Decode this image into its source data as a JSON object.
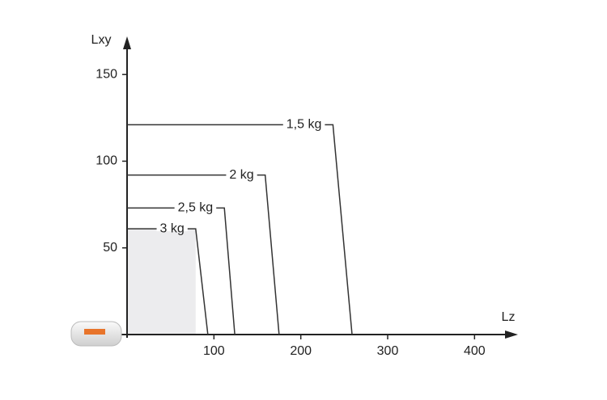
{
  "chart_data": {
    "type": "line",
    "x_label": "Lz",
    "y_label": "Lxy",
    "xlim": [
      0,
      450
    ],
    "ylim": [
      0,
      172
    ],
    "xticks": [
      100,
      200,
      300,
      400
    ],
    "yticks": [
      50,
      100,
      150
    ],
    "color": "#333333",
    "series": [
      {
        "name": "1,5 kg",
        "x": [
          0,
          237,
          259
        ],
        "values": [
          121,
          121,
          0
        ]
      },
      {
        "name": "2 kg",
        "x": [
          0,
          159,
          175
        ],
        "values": [
          92,
          92,
          0
        ]
      },
      {
        "name": "2,5 kg",
        "x": [
          0,
          112,
          124
        ],
        "values": [
          73,
          73,
          0
        ]
      },
      {
        "name": "3 kg",
        "x": [
          0,
          79,
          93
        ],
        "values": [
          61,
          61,
          0
        ]
      }
    ]
  }
}
